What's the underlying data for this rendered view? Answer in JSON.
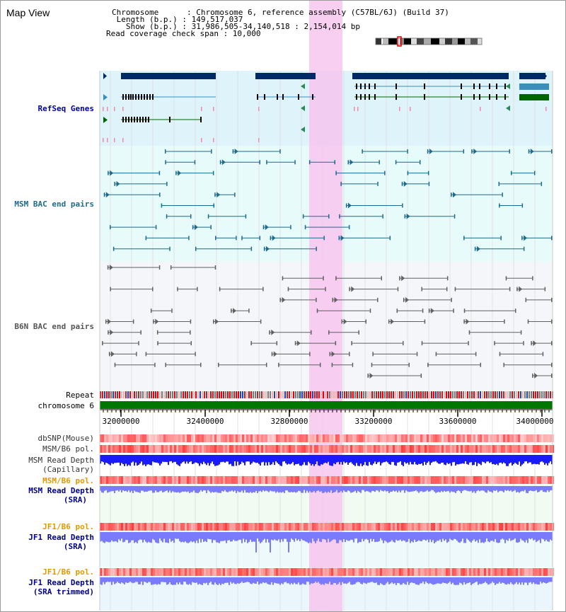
{
  "title": "Map View",
  "info": {
    "chromosome": "Chromosome      : Chromosome 6, reference assembly (C57BL/6J) (Build 37)",
    "length": " Length (b.p.) : 149,517,037",
    "show": "   Show (b.p.) : 31,986,505-34,140,518 : 2,154,014 bp",
    "coverage": "Read coverage check span : 10,000"
  },
  "tracks": {
    "refseq": "RefSeq Genes",
    "msm_bac": "MSM BAC end pairs",
    "b6n_bac": "B6N BAC end pairs",
    "repeat": "Repeat",
    "chromosome": "chromosome 6",
    "dbsnp": "dbSNP(Mouse)",
    "msm_b6_pol_1": "MSM/B6 pol.",
    "msm_read_depth_cap_1": "MSM Read Depth",
    "msm_read_depth_cap_2": "(Capillary)",
    "msm_b6_pol_2": "MSM/B6 pol.",
    "msm_read_depth_sra_1": "MSM Read Depth",
    "msm_read_depth_sra_2": "(SRA)",
    "jf1_b6_pol_1": "JF1/B6 pol.",
    "jf1_read_depth_sra_1": "JF1 Read Depth",
    "jf1_read_depth_sra_2": "(SRA)",
    "jf1_b6_pol_2": "JF1/B6 pol.",
    "jf1_read_depth_trim_1": "JF1 Read Depth",
    "jf1_read_depth_trim_2": "(SRA trimmed)"
  },
  "axis": {
    "ticks": [
      "32000000",
      "32400000",
      "32800000",
      "33200000",
      "33600000",
      "34000000"
    ]
  },
  "colors": {
    "highlight": "#f7c6ee",
    "refseq_bg": "#dff3fb",
    "msm_bg": "#e8fbfb",
    "b6n_bg": "#f4f6fa",
    "gene_dark": "#002a66",
    "gene_teal": "#3b8dbb",
    "gene_green": "#006400",
    "msm_pair": "#1e6a8a",
    "b6n_pair": "#606060",
    "chrom_bar": "#007700",
    "depth_blue": "#1a1aff",
    "depth_light": "#7a7aff"
  }
}
